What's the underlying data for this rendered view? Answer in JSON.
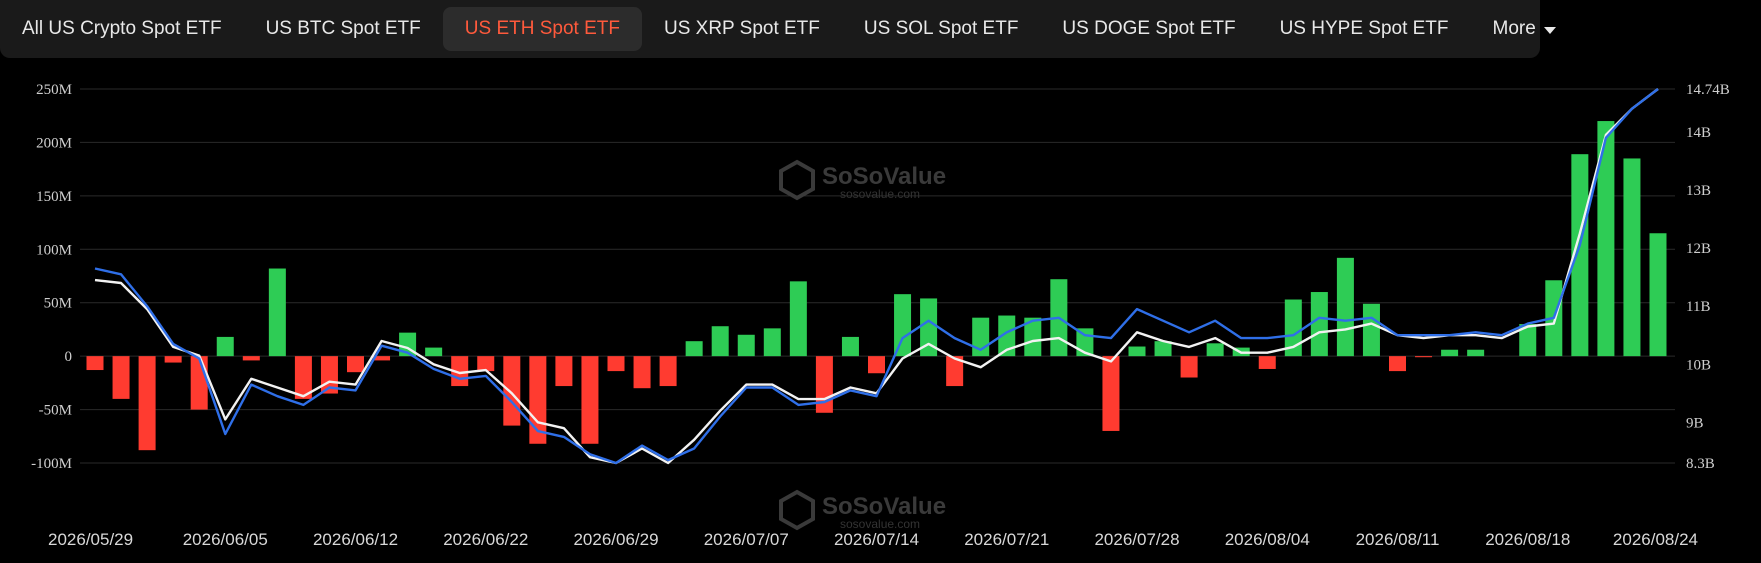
{
  "tabs": [
    {
      "label": "All US Crypto Spot ETF",
      "active": false
    },
    {
      "label": "US BTC Spot ETF",
      "active": false
    },
    {
      "label": "US ETH Spot ETF",
      "active": true
    },
    {
      "label": "US XRP Spot ETF",
      "active": false
    },
    {
      "label": "US SOL Spot ETF",
      "active": false
    },
    {
      "label": "US DOGE Spot ETF",
      "active": false
    },
    {
      "label": "US HYPE Spot ETF",
      "active": false
    }
  ],
  "more_label": "More",
  "watermark": {
    "name": "SoSoValue",
    "url": "sosovalue.com"
  },
  "colors": {
    "inflow": "#2ecc55",
    "outflow": "#ff3b30",
    "blue_line": "#2f6fe8",
    "white_line": "#f2f2f2",
    "grid": "#2a2a2a",
    "accent": "#ff5a3c"
  },
  "chart_data": {
    "type": "bar",
    "x_tick_labels": [
      "2026/05/29",
      "2026/06/05",
      "2026/06/12",
      "2026/06/22",
      "2026/06/29",
      "2026/07/07",
      "2026/07/14",
      "2026/07/21",
      "2026/07/28",
      "2026/08/04",
      "2026/08/11",
      "2026/08/18",
      "2026/08/24"
    ],
    "x_tick_index": [
      0,
      5,
      10,
      15,
      20,
      25,
      30,
      35,
      40,
      45,
      50,
      55,
      60
    ],
    "y_left_ticks": [
      "250M",
      "200M",
      "150M",
      "100M",
      "50M",
      "0",
      "-50M",
      "-100M"
    ],
    "y_left_range": [
      -100,
      250
    ],
    "y_right_ticks": [
      "14.74B",
      "14B",
      "13B",
      "12B",
      "11B",
      "10B",
      "9B",
      "8.3B"
    ],
    "y_right_tick_values": [
      14.74,
      14,
      13,
      12,
      11,
      10,
      9,
      8.3
    ],
    "y_right_range": [
      8.3,
      14.74
    ],
    "grid": true,
    "series": [
      {
        "type": "bar",
        "values": [
          -13,
          -40,
          -88,
          -6,
          -50,
          18,
          -4,
          82,
          -40,
          -35,
          -15,
          -4,
          22,
          8,
          -28,
          -14,
          -65,
          -82,
          -28,
          -82,
          -14,
          -30,
          -28,
          14,
          28,
          20,
          26,
          70,
          -53,
          18,
          -16,
          58,
          54,
          -28,
          36,
          38,
          36,
          72,
          26,
          -70,
          9,
          14,
          -20,
          12,
          8,
          -12,
          53,
          60,
          92,
          49,
          -14,
          -1,
          6,
          6,
          0,
          30,
          71,
          189,
          220,
          185,
          115
        ]
      },
      {
        "type": "line",
        "values": [
          11.45,
          11.4,
          10.95,
          10.3,
          10.15,
          9.05,
          9.75,
          9.6,
          9.45,
          9.7,
          9.65,
          10.4,
          10.28,
          10.0,
          9.85,
          9.9,
          9.5,
          9.0,
          8.9,
          8.4,
          8.3,
          8.55,
          8.3,
          8.7,
          9.2,
          9.65,
          9.65,
          9.4,
          9.4,
          9.6,
          9.5,
          10.1,
          10.35,
          10.1,
          9.95,
          10.25,
          10.4,
          10.45,
          10.2,
          10.05,
          10.55,
          10.4,
          10.3,
          10.45,
          10.2,
          10.2,
          10.3,
          10.55,
          10.6,
          10.7,
          10.5,
          10.45,
          10.5,
          10.5,
          10.45,
          10.65,
          10.7,
          12.25,
          13.95,
          14.4,
          14.74
        ]
      },
      {
        "type": "line",
        "values": [
          11.65,
          11.55,
          11.0,
          10.35,
          10.1,
          8.8,
          9.65,
          9.45,
          9.3,
          9.6,
          9.55,
          10.32,
          10.2,
          9.92,
          9.75,
          9.8,
          9.35,
          8.85,
          8.75,
          8.45,
          8.3,
          8.6,
          8.35,
          8.55,
          9.1,
          9.6,
          9.6,
          9.3,
          9.35,
          9.55,
          9.45,
          10.45,
          10.75,
          10.45,
          10.25,
          10.55,
          10.75,
          10.8,
          10.5,
          10.45,
          10.95,
          10.75,
          10.55,
          10.75,
          10.45,
          10.45,
          10.5,
          10.8,
          10.75,
          10.8,
          10.5,
          10.5,
          10.5,
          10.55,
          10.5,
          10.7,
          10.8,
          12.05,
          13.9,
          14.4,
          14.74
        ]
      }
    ]
  }
}
